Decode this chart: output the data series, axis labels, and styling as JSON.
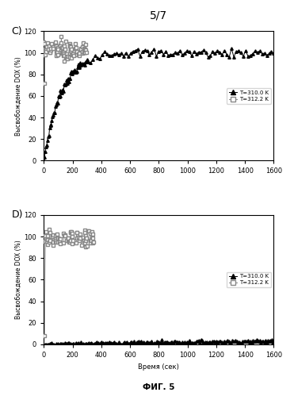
{
  "title": "5/7",
  "fig_label": "ФИГ. 5",
  "panel_C_label": "C)",
  "panel_D_label": "D)",
  "xlabel": "Время (сек)",
  "ylabel": "Высвобождение DOX (%)",
  "legend_T1": "T=310.0 K",
  "legend_T2": "T=312.2 K",
  "xlim": [
    0,
    1600
  ],
  "ylim_C": [
    0,
    120
  ],
  "ylim_D": [
    0,
    120
  ],
  "xticks": [
    0,
    200,
    400,
    600,
    800,
    1000,
    1200,
    1400,
    1600
  ],
  "yticks": [
    0,
    20,
    40,
    60,
    80,
    100,
    120
  ],
  "bg_color": "#ffffff"
}
